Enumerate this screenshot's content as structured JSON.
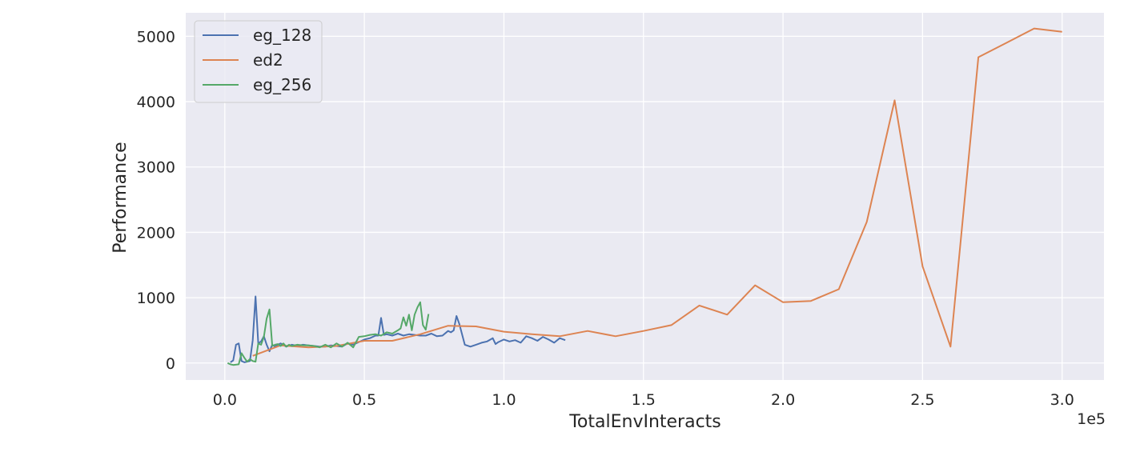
{
  "chart_data": {
    "type": "line",
    "title": "",
    "xlabel": "TotalEnvInteracts",
    "ylabel": "Performance",
    "x_offset_label": "1e5",
    "xlim": [
      -0.14,
      3.15
    ],
    "ylim": [
      -260,
      5360
    ],
    "x_ticks": [
      0.0,
      0.5,
      1.0,
      1.5,
      2.0,
      2.5,
      3.0
    ],
    "x_tick_labels": [
      "0.0",
      "0.5",
      "1.0",
      "1.5",
      "2.0",
      "2.5",
      "3.0"
    ],
    "y_ticks": [
      0,
      1000,
      2000,
      3000,
      4000,
      5000
    ],
    "y_tick_labels": [
      "0",
      "1000",
      "2000",
      "3000",
      "4000",
      "5000"
    ],
    "grid": true,
    "legend_position": "top-left",
    "background_color": "#eaeaf2",
    "series": [
      {
        "name": "eg_128",
        "color": "#4c72b0",
        "x": [
          0.02,
          0.03,
          0.04,
          0.05,
          0.06,
          0.07,
          0.08,
          0.09,
          0.1,
          0.11,
          0.12,
          0.13,
          0.14,
          0.15,
          0.16,
          0.17,
          0.18,
          0.19,
          0.2,
          0.22,
          0.24,
          0.26,
          0.28,
          0.3,
          0.32,
          0.34,
          0.36,
          0.38,
          0.4,
          0.42,
          0.44,
          0.46,
          0.48,
          0.5,
          0.52,
          0.54,
          0.55,
          0.56,
          0.57,
          0.58,
          0.6,
          0.62,
          0.64,
          0.66,
          0.68,
          0.7,
          0.72,
          0.74,
          0.76,
          0.78,
          0.8,
          0.81,
          0.82,
          0.83,
          0.84,
          0.86,
          0.88,
          0.9,
          0.92,
          0.94,
          0.96,
          0.97,
          0.98,
          1.0,
          1.02,
          1.04,
          1.06,
          1.08,
          1.1,
          1.12,
          1.14,
          1.16,
          1.18,
          1.2,
          1.22
        ],
        "y": [
          10,
          40,
          280,
          300,
          30,
          10,
          20,
          30,
          350,
          1020,
          300,
          330,
          410,
          280,
          180,
          280,
          250,
          280,
          300,
          250,
          280,
          260,
          280,
          270,
          260,
          250,
          250,
          270,
          260,
          250,
          300,
          280,
          320,
          360,
          380,
          420,
          420,
          690,
          430,
          440,
          420,
          450,
          420,
          440,
          430,
          420,
          420,
          450,
          410,
          420,
          490,
          470,
          500,
          720,
          600,
          280,
          250,
          280,
          310,
          330,
          380,
          290,
          320,
          360,
          330,
          350,
          310,
          410,
          380,
          340,
          400,
          360,
          310,
          380,
          350
        ]
      },
      {
        "name": "ed2",
        "color": "#dd8452",
        "x": [
          0.1,
          0.2,
          0.3,
          0.4,
          0.5,
          0.6,
          0.7,
          0.8,
          0.9,
          1.0,
          1.1,
          1.2,
          1.3,
          1.4,
          1.5,
          1.6,
          1.7,
          1.8,
          1.9,
          2.0,
          2.1,
          2.2,
          2.3,
          2.4,
          2.5,
          2.6,
          2.7,
          2.8,
          2.9,
          3.0
        ],
        "y": [
          110,
          270,
          240,
          260,
          340,
          340,
          440,
          570,
          560,
          480,
          440,
          410,
          490,
          410,
          490,
          580,
          880,
          740,
          1190,
          930,
          950,
          1130,
          2160,
          4020,
          1480,
          250,
          4680,
          4900,
          5120,
          5070
        ]
      },
      {
        "name": "eg_256",
        "color": "#55a868",
        "x": [
          0.01,
          0.02,
          0.03,
          0.05,
          0.06,
          0.07,
          0.08,
          0.09,
          0.1,
          0.11,
          0.12,
          0.13,
          0.14,
          0.15,
          0.16,
          0.17,
          0.18,
          0.19,
          0.2,
          0.21,
          0.22,
          0.23,
          0.24,
          0.26,
          0.28,
          0.3,
          0.32,
          0.34,
          0.36,
          0.38,
          0.4,
          0.42,
          0.44,
          0.46,
          0.48,
          0.5,
          0.52,
          0.54,
          0.56,
          0.58,
          0.6,
          0.62,
          0.63,
          0.64,
          0.65,
          0.66,
          0.67,
          0.68,
          0.69,
          0.7,
          0.71,
          0.72,
          0.73
        ],
        "y": [
          0,
          -20,
          -30,
          -20,
          150,
          80,
          20,
          60,
          30,
          20,
          300,
          280,
          400,
          680,
          820,
          260,
          280,
          290,
          260,
          300,
          250,
          280,
          260,
          280,
          270,
          270,
          260,
          240,
          280,
          240,
          300,
          250,
          310,
          240,
          400,
          410,
          430,
          440,
          420,
          470,
          450,
          500,
          530,
          700,
          570,
          740,
          500,
          740,
          850,
          930,
          580,
          510,
          750
        ]
      }
    ]
  }
}
